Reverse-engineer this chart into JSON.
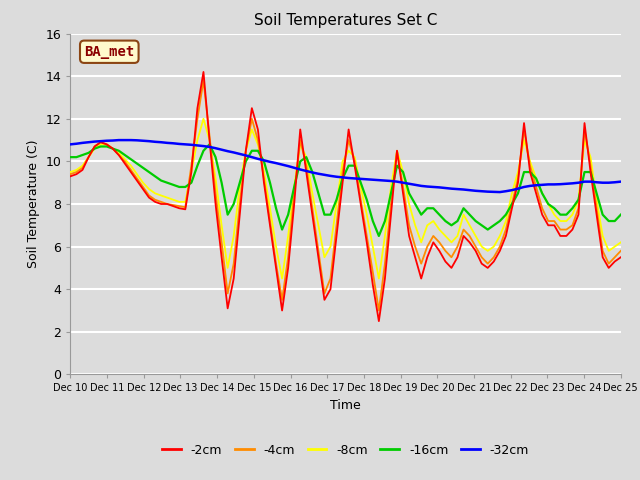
{
  "title": "Soil Temperatures Set C",
  "xlabel": "Time",
  "ylabel": "Soil Temperature (C)",
  "ylim": [
    0,
    16
  ],
  "yticks": [
    0,
    2,
    4,
    6,
    8,
    10,
    12,
    14,
    16
  ],
  "xtick_labels": [
    "Dec 10",
    "Dec 11",
    "Dec 12",
    "Dec 13",
    "Dec 14",
    "Dec 15",
    "Dec 16",
    "Dec 17",
    "Dec 18",
    "Dec 19",
    "Dec 20",
    "Dec 21",
    "Dec 22",
    "Dec 23",
    "Dec 24",
    "Dec 25"
  ],
  "annotation_text": "BA_met",
  "annotation_color": "#8B0000",
  "annotation_bg": "#FFFACD",
  "annotation_border": "#8B4513",
  "colors": {
    "-2cm": "#FF0000",
    "-4cm": "#FF8C00",
    "-8cm": "#FFFF00",
    "-16cm": "#00CC00",
    "-32cm": "#0000FF"
  },
  "background_color": "#DCDCDC",
  "series_2cm": [
    9.3,
    9.4,
    9.6,
    10.2,
    10.7,
    10.9,
    10.8,
    10.6,
    10.3,
    9.9,
    9.5,
    9.1,
    8.7,
    8.3,
    8.1,
    8.0,
    8.0,
    7.9,
    7.8,
    7.75,
    9.5,
    12.5,
    14.2,
    11.0,
    8.0,
    5.5,
    3.1,
    4.5,
    7.5,
    10.5,
    12.5,
    11.5,
    9.0,
    7.0,
    5.0,
    3.0,
    5.0,
    8.0,
    11.5,
    9.5,
    7.5,
    5.5,
    3.5,
    4.0,
    6.5,
    9.0,
    11.5,
    9.8,
    8.0,
    6.2,
    4.2,
    2.5,
    4.5,
    7.5,
    10.5,
    8.5,
    6.5,
    5.5,
    4.5,
    5.5,
    6.2,
    5.8,
    5.3,
    5.0,
    5.5,
    6.5,
    6.2,
    5.8,
    5.2,
    5.0,
    5.3,
    5.8,
    6.5,
    7.8,
    9.0,
    11.8,
    9.5,
    8.5,
    7.5,
    7.0,
    7.0,
    6.5,
    6.5,
    6.8,
    7.5,
    11.8,
    9.5,
    7.5,
    5.5,
    5.0,
    5.3,
    5.5
  ],
  "series_4cm": [
    9.4,
    9.5,
    9.7,
    10.2,
    10.7,
    10.9,
    10.8,
    10.6,
    10.3,
    10.0,
    9.6,
    9.2,
    8.8,
    8.4,
    8.2,
    8.1,
    8.0,
    7.95,
    7.9,
    7.85,
    9.8,
    12.0,
    13.8,
    11.2,
    8.5,
    6.2,
    3.8,
    5.2,
    8.0,
    10.5,
    12.0,
    11.0,
    9.2,
    7.2,
    5.2,
    3.5,
    5.5,
    8.5,
    11.0,
    9.8,
    7.8,
    5.8,
    3.8,
    4.5,
    7.0,
    9.5,
    11.0,
    10.0,
    8.2,
    6.5,
    4.8,
    3.0,
    5.2,
    8.0,
    10.5,
    8.8,
    7.0,
    6.0,
    5.2,
    6.0,
    6.5,
    6.2,
    5.8,
    5.5,
    6.0,
    6.8,
    6.5,
    6.0,
    5.5,
    5.2,
    5.5,
    6.0,
    6.8,
    8.0,
    9.2,
    11.5,
    9.8,
    8.8,
    7.8,
    7.2,
    7.2,
    6.8,
    6.8,
    7.0,
    7.8,
    11.5,
    9.8,
    7.8,
    5.8,
    5.2,
    5.5,
    5.8
  ],
  "series_8cm": [
    9.5,
    9.6,
    9.8,
    10.2,
    10.6,
    10.8,
    10.8,
    10.6,
    10.4,
    10.1,
    9.8,
    9.4,
    9.0,
    8.7,
    8.5,
    8.4,
    8.3,
    8.2,
    8.1,
    8.1,
    9.5,
    11.0,
    12.0,
    11.0,
    9.2,
    7.0,
    5.0,
    6.5,
    8.8,
    10.5,
    11.5,
    10.8,
    9.5,
    7.8,
    6.0,
    4.5,
    6.5,
    8.8,
    10.8,
    10.2,
    8.5,
    7.0,
    5.5,
    6.0,
    8.0,
    10.0,
    10.5,
    10.2,
    8.8,
    7.5,
    6.0,
    4.5,
    6.5,
    8.8,
    10.5,
    9.5,
    8.0,
    7.0,
    6.2,
    7.0,
    7.2,
    6.8,
    6.5,
    6.2,
    6.5,
    7.5,
    7.0,
    6.5,
    6.0,
    5.8,
    6.0,
    6.5,
    7.2,
    8.5,
    9.5,
    11.0,
    10.0,
    9.2,
    8.5,
    8.0,
    7.5,
    7.2,
    7.2,
    7.5,
    8.2,
    11.0,
    10.2,
    8.2,
    6.5,
    5.8,
    6.0,
    6.2
  ],
  "series_16cm": [
    10.2,
    10.2,
    10.3,
    10.4,
    10.6,
    10.7,
    10.7,
    10.6,
    10.5,
    10.3,
    10.1,
    9.9,
    9.7,
    9.5,
    9.3,
    9.1,
    9.0,
    8.9,
    8.8,
    8.8,
    9.0,
    9.8,
    10.5,
    10.8,
    10.2,
    9.0,
    7.5,
    8.0,
    9.0,
    10.0,
    10.5,
    10.5,
    10.0,
    9.0,
    7.8,
    6.8,
    7.5,
    8.8,
    10.0,
    10.2,
    9.5,
    8.5,
    7.5,
    7.5,
    8.2,
    9.2,
    9.8,
    9.8,
    9.0,
    8.2,
    7.2,
    6.5,
    7.2,
    8.5,
    9.8,
    9.5,
    8.5,
    8.0,
    7.5,
    7.8,
    7.8,
    7.5,
    7.2,
    7.0,
    7.2,
    7.8,
    7.5,
    7.2,
    7.0,
    6.8,
    7.0,
    7.2,
    7.5,
    8.0,
    8.5,
    9.5,
    9.5,
    9.2,
    8.5,
    8.0,
    7.8,
    7.5,
    7.5,
    7.8,
    8.2,
    9.5,
    9.5,
    8.5,
    7.5,
    7.2,
    7.2,
    7.5
  ],
  "series_32cm": [
    10.8,
    10.83,
    10.87,
    10.9,
    10.93,
    10.95,
    10.97,
    10.98,
    11.0,
    11.0,
    11.0,
    10.99,
    10.97,
    10.95,
    10.92,
    10.9,
    10.87,
    10.85,
    10.82,
    10.8,
    10.78,
    10.75,
    10.72,
    10.68,
    10.62,
    10.55,
    10.48,
    10.42,
    10.35,
    10.28,
    10.2,
    10.12,
    10.05,
    9.98,
    9.92,
    9.85,
    9.78,
    9.7,
    9.62,
    9.55,
    9.48,
    9.42,
    9.37,
    9.32,
    9.28,
    9.25,
    9.22,
    9.2,
    9.18,
    9.16,
    9.14,
    9.12,
    9.1,
    9.08,
    9.05,
    9.0,
    8.95,
    8.9,
    8.85,
    8.82,
    8.8,
    8.78,
    8.75,
    8.72,
    8.7,
    8.68,
    8.65,
    8.62,
    8.6,
    8.58,
    8.57,
    8.56,
    8.6,
    8.65,
    8.72,
    8.8,
    8.85,
    8.88,
    8.9,
    8.92,
    8.92,
    8.93,
    8.95,
    8.97,
    9.0,
    9.05,
    9.05,
    9.02,
    9.0,
    9.0,
    9.02,
    9.05
  ]
}
